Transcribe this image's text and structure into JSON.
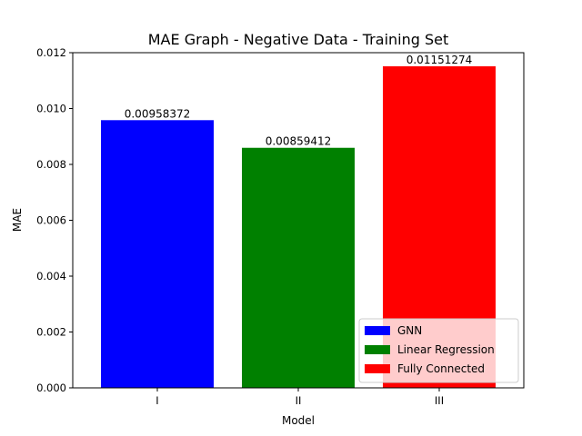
{
  "chart_data": {
    "type": "bar",
    "title": "MAE Graph - Negative Data - Training Set",
    "xlabel": "Model",
    "ylabel": "MAE",
    "categories": [
      "I",
      "II",
      "III"
    ],
    "values": [
      0.00958372,
      0.00859412,
      0.01151274
    ],
    "data_labels": [
      "0.00958372",
      "0.00859412",
      "0.01151274"
    ],
    "colors": [
      "#0000ff",
      "#008000",
      "#ff0000"
    ],
    "legend": [
      "GNN",
      "Linear Regression",
      "Fully Connected"
    ],
    "legend_placement": "lower-right",
    "ylim": [
      0,
      0.012
    ],
    "yticks": [
      0,
      0.002,
      0.004,
      0.006,
      0.008,
      0.01,
      0.012
    ],
    "ytick_labels": [
      "0.000",
      "0.002",
      "0.004",
      "0.006",
      "0.008",
      "0.010",
      "0.012"
    ],
    "grid": false
  }
}
